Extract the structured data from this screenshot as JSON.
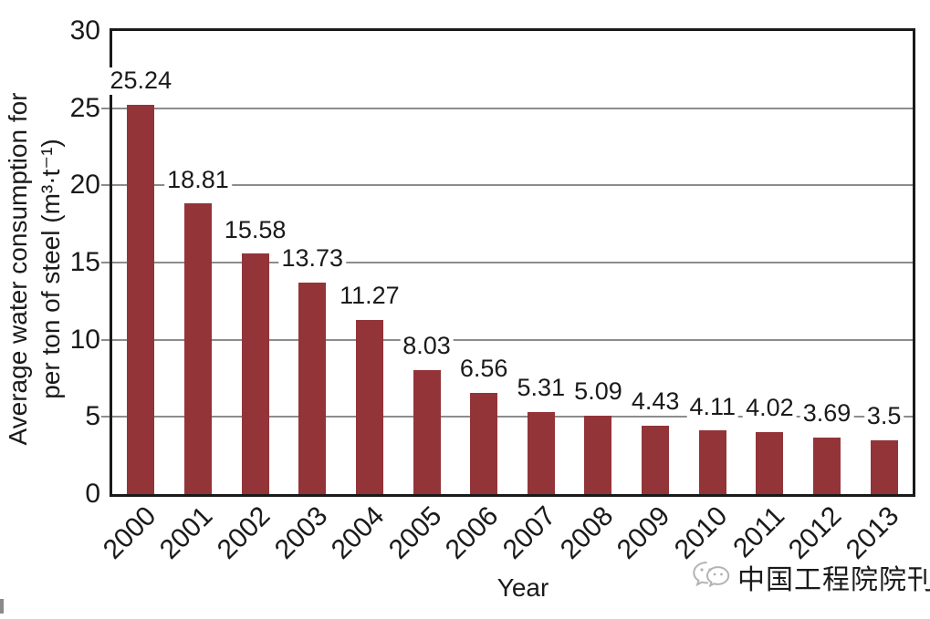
{
  "chart_data": {
    "type": "bar",
    "title": "",
    "categories": [
      "2000",
      "2001",
      "2002",
      "2003",
      "2004",
      "2005",
      "2006",
      "2007",
      "2008",
      "2009",
      "2010",
      "2011",
      "2012",
      "2013"
    ],
    "values": [
      25.24,
      18.81,
      15.58,
      13.73,
      11.27,
      8.03,
      6.56,
      5.31,
      5.09,
      4.43,
      4.11,
      4.02,
      3.69,
      3.5
    ],
    "value_labels": [
      "25.24",
      "18.81",
      "15.58",
      "13.73",
      "11.27",
      "8.03",
      "6.56",
      "5.31",
      "5.09",
      "4.43",
      "4.11",
      "4.02",
      "3.69",
      "3.5"
    ],
    "xlabel": "Year",
    "ylabel_line1": "Average water consumption for",
    "ylabel_line2": "per ton of steel (m³·t⁻¹)",
    "ylim": [
      0,
      30
    ],
    "yticks": [
      0,
      5,
      10,
      15,
      20,
      25,
      30
    ],
    "grid": true,
    "legend": "none",
    "bar_color": "#933439",
    "gridline_color": "#8c8c8c",
    "axis_color": "#1a1a1a",
    "text_color": "#1a1a1a"
  },
  "watermark": {
    "text": "中国工程院院刊",
    "icon": "wechat-icon",
    "color": "#b3b3b3"
  }
}
